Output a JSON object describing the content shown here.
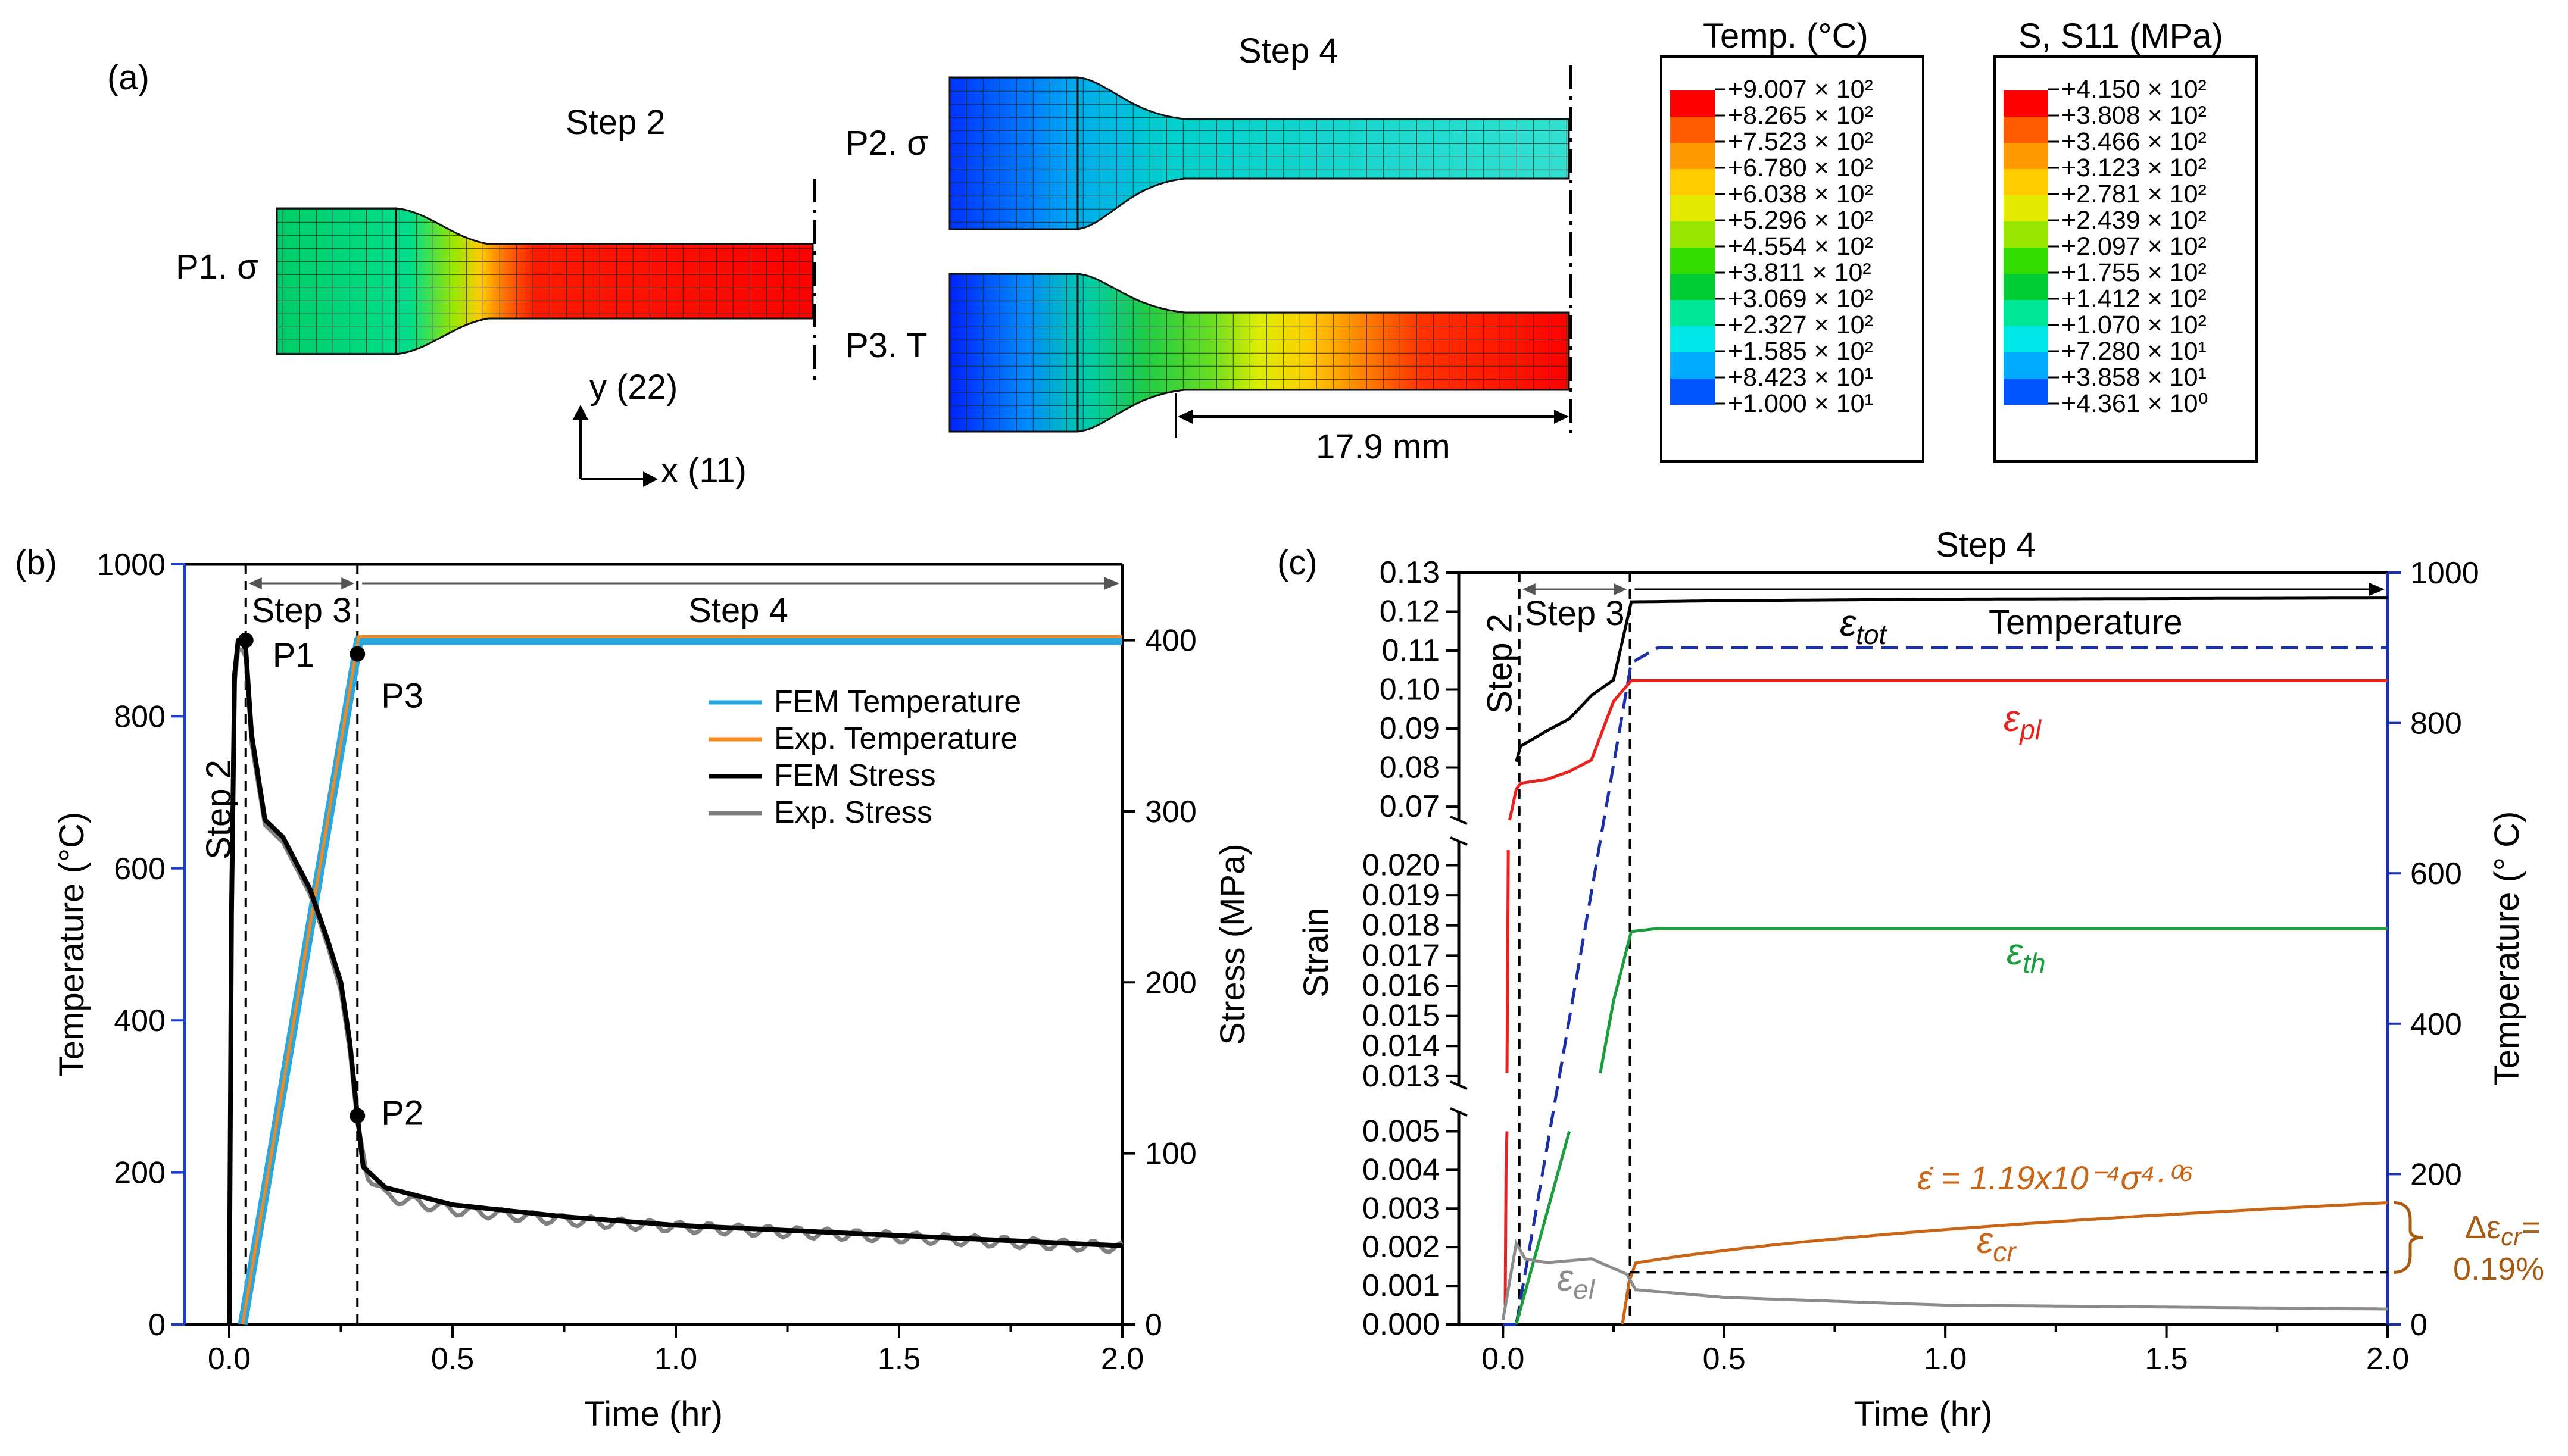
{
  "panels": {
    "a": "(a)",
    "b": "(b)",
    "c": "(c)"
  },
  "panel_a": {
    "step2_title": "Step 2",
    "step4_title": "Step 4",
    "p1_label": "P1. σ",
    "p2_label": "P2. σ",
    "p3_label": "P3. T",
    "axis_y_label": "y (22)",
    "axis_x_label": "x (11)",
    "dimension_label": "17.9 mm",
    "temp_legend": {
      "title": "Temp. (°C)",
      "values": [
        "+9.007 × 10²",
        "+8.265 × 10²",
        "+7.523 × 10²",
        "+6.780 × 10²",
        "+6.038 × 10²",
        "+5.296 × 10²",
        "+4.554 × 10²",
        "+3.811 × 10²",
        "+3.069 × 10²",
        "+2.327 × 10²",
        "+1.585 × 10²",
        "+8.423 × 10¹",
        "+1.000 × 10¹"
      ]
    },
    "stress_legend": {
      "title": "S, S11 (MPa)",
      "values": [
        "+4.150 × 10²",
        "+3.808 × 10²",
        "+3.466 × 10²",
        "+3.123 × 10²",
        "+2.781 × 10²",
        "+2.439 × 10²",
        "+2.097 × 10²",
        "+1.755 × 10²",
        "+1.412 × 10²",
        "+1.070 × 10²",
        "+7.280 × 10¹",
        "+3.858 × 10¹",
        "+4.361 × 10⁰"
      ]
    },
    "colormap": [
      "#ff0000",
      "#ff5a00",
      "#ff9900",
      "#ffcc00",
      "#e3e800",
      "#99e600",
      "#33dd00",
      "#00cc33",
      "#00e699",
      "#00e6e6",
      "#00aaff",
      "#0055ff",
      "#0000ff"
    ]
  },
  "chart_data": [
    {
      "id": "b",
      "type": "line",
      "xlabel": "Time (hr)",
      "ylabel_left": "Temperature (°C)",
      "ylabel_right": "Stress (MPa)",
      "xlim": [
        -0.1,
        2.0
      ],
      "ylim_left": [
        0,
        1000
      ],
      "ylim_right": [
        0,
        444.4
      ],
      "x_ticks": [
        "0.0",
        "0.5",
        "1.0",
        "1.5",
        "2.0"
      ],
      "y_left_ticks": [
        "0",
        "200",
        "400",
        "600",
        "800",
        "1000"
      ],
      "y_right_ticks": [
        "0",
        "100",
        "200",
        "300",
        "400"
      ],
      "steps": {
        "step2": "Step 2",
        "step3": "Step 3",
        "step4": "Step 4"
      },
      "step_boundaries": [
        0.037,
        0.287
      ],
      "points": [
        {
          "label": "P1",
          "x": 0.037,
          "y": 400,
          "axis": "right"
        },
        {
          "label": "P2",
          "x": 0.287,
          "y": 122,
          "axis": "right"
        },
        {
          "label": "P3",
          "x": 0.287,
          "y": 392,
          "axis": "right"
        }
      ],
      "legend": [
        "FEM Temperature",
        "Exp. Temperature",
        "FEM Stress",
        "Exp. Stress"
      ],
      "colors": {
        "fem_temp": "#29a8e0",
        "exp_temp": "#f08a24",
        "fem_stress": "#000000",
        "exp_stress": "#808080",
        "left_axis": "#1a3fcc"
      },
      "series": [
        {
          "name": "FEM Temperature",
          "axis": "left",
          "x": [
            0.03,
            0.29,
            2.0
          ],
          "y": [
            0,
            900,
            900
          ]
        },
        {
          "name": "Exp. Temperature",
          "axis": "left",
          "x": [
            0.03,
            0.29,
            2.0
          ],
          "y": [
            0,
            905,
            905
          ]
        },
        {
          "name": "FEM Stress",
          "axis": "right",
          "x": [
            0.0,
            0.005,
            0.012,
            0.02,
            0.03,
            0.037,
            0.05,
            0.08,
            0.12,
            0.18,
            0.22,
            0.25,
            0.27,
            0.287,
            0.3,
            0.35,
            0.5,
            0.75,
            1.0,
            1.5,
            2.0
          ],
          "y": [
            0,
            240,
            380,
            400,
            398,
            395,
            345,
            295,
            285,
            255,
            225,
            200,
            165,
            122,
            92,
            80,
            70,
            63,
            58,
            52,
            46
          ]
        },
        {
          "name": "Exp. Stress",
          "axis": "right",
          "x": [
            0.0,
            0.005,
            0.012,
            0.02,
            0.03,
            0.037,
            0.05,
            0.08,
            0.12,
            0.18,
            0.22,
            0.25,
            0.27,
            0.287,
            0.31,
            0.35,
            0.5,
            0.75,
            1.0,
            1.5,
            2.0
          ],
          "y": [
            0,
            235,
            375,
            395,
            394,
            390,
            340,
            292,
            282,
            252,
            222,
            195,
            160,
            118,
            88,
            75,
            67,
            61,
            57,
            51,
            45
          ]
        }
      ]
    },
    {
      "id": "c",
      "type": "line",
      "xlabel": "Time (hr)",
      "ylabel_left": "Strain",
      "ylabel_right": "Temperature (° C)",
      "xlim": [
        -0.1,
        2.0
      ],
      "ylim_right": [
        0,
        1000
      ],
      "x_ticks": [
        "0.0",
        "0.5",
        "1.0",
        "1.5",
        "2.0"
      ],
      "y_left_ticks_upper": [
        "0.07",
        "0.08",
        "0.09",
        "0.10",
        "0.11",
        "0.12",
        "0.13"
      ],
      "y_left_ticks_middle": [
        "0.013",
        "0.014",
        "0.015",
        "0.016",
        "0.017",
        "0.018",
        "0.019",
        "0.020"
      ],
      "y_left_ticks_lower": [
        "0.000",
        "0.001",
        "0.002",
        "0.003",
        "0.004",
        "0.005"
      ],
      "y_right_ticks": [
        "0",
        "200",
        "400",
        "600",
        "800",
        "1000"
      ],
      "steps": {
        "step2": "Step 2",
        "step3": "Step 3",
        "step4": "Step 4"
      },
      "step_boundaries": [
        0.037,
        0.287
      ],
      "labels": {
        "tot": "ε",
        "tot_sub": "tot",
        "pl": "ε",
        "pl_sub": "pl",
        "th": "ε",
        "th_sub": "th",
        "cr": "ε",
        "cr_sub": "cr",
        "el": "ε",
        "el_sub": "el",
        "temperature": "Temperature",
        "creep_law": "ε̇ = 1.19x10⁻⁴σ⁴·⁰⁶",
        "delta_label": "Δε",
        "delta_sub": "cr",
        "delta_eq": "=",
        "delta_value": "0.19%"
      },
      "colors": {
        "tot": "#000000",
        "pl": "#e8231f",
        "th": "#1a9e3c",
        "cr": "#c96516",
        "el": "#8c8c8c",
        "temp": "#1a2fa8",
        "right_axis": "#1a2fa8",
        "brace": "#a65a12"
      },
      "series": [
        {
          "name": "ε_tot",
          "x": [
            0.03,
            0.04,
            0.1,
            0.15,
            0.2,
            0.25,
            0.29,
            0.5,
            1.0,
            2.0
          ],
          "y": [
            0.0815,
            0.0855,
            0.0895,
            0.0925,
            0.0985,
            0.1025,
            0.1225,
            0.1228,
            0.1232,
            0.1235
          ]
        },
        {
          "name": "ε_pl",
          "x": [
            0.03,
            0.04,
            0.1,
            0.15,
            0.2,
            0.25,
            0.29,
            2.0
          ],
          "y": [
            0.0745,
            0.076,
            0.077,
            0.079,
            0.082,
            0.097,
            0.1023,
            0.1023
          ]
        },
        {
          "name": "ε_th",
          "x": [
            0.29,
            0.35,
            1.0,
            2.0
          ],
          "y": [
            0.0178,
            0.0179,
            0.0179,
            0.0179
          ]
        },
        {
          "name": "ε_cr",
          "x": [
            0.27,
            0.3,
            0.5,
            1.0,
            1.5,
            2.0
          ],
          "y": [
            0.0,
            0.0015,
            0.0022,
            0.0027,
            0.0029,
            0.00315
          ]
        },
        {
          "name": "ε_el",
          "x": [
            0.0,
            0.03,
            0.05,
            0.1,
            0.2,
            0.28,
            0.3,
            0.5,
            1.0,
            2.0
          ],
          "y": [
            0.00012,
            0.0021,
            0.0017,
            0.0016,
            0.0017,
            0.0013,
            0.0009,
            0.0007,
            0.0005,
            0.0004
          ]
        },
        {
          "name": "Temperature",
          "axis": "right",
          "x": [
            0.03,
            0.29,
            0.35,
            2.0
          ],
          "y": [
            0,
            880,
            900,
            900
          ]
        }
      ],
      "delta_reference": 0.00135
    }
  ]
}
